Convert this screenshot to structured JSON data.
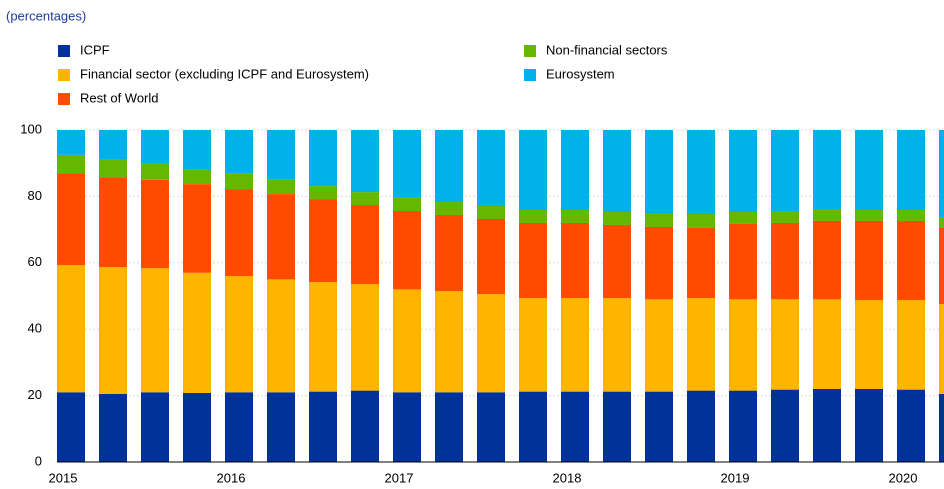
{
  "chart_data": {
    "type": "stacked-bar",
    "subtitle": "(percentages)",
    "categories": [
      "2015",
      null,
      null,
      null,
      "2016",
      null,
      null,
      null,
      "2017",
      null,
      null,
      null,
      "2018",
      null,
      null,
      null,
      "2019",
      null,
      null,
      null,
      "2020",
      null
    ],
    "series": [
      {
        "name": "ICPF",
        "color": "#003299",
        "values": [
          21,
          20.5,
          21,
          20.8,
          21,
          21,
          21.2,
          21.5,
          21,
          21,
          21,
          21.2,
          21.2,
          21.2,
          21.2,
          21.5,
          21.5,
          21.8,
          22,
          22,
          21.8,
          20.5
        ]
      },
      {
        "name": "Financial sector (excluding ICPF and Eurosystem)",
        "color": "#ffb400",
        "values": [
          38.3,
          38.2,
          37.4,
          36.2,
          35,
          34,
          33,
          32.1,
          31,
          30.5,
          29.6,
          28.2,
          28.2,
          28.2,
          27.8,
          27.9,
          27.5,
          27.2,
          27,
          26.8,
          27,
          27.1
        ]
      },
      {
        "name": "Rest of World",
        "color": "#ff4b00",
        "values": [
          27.7,
          27.1,
          26.6,
          26.7,
          26.2,
          25.7,
          25,
          23.8,
          23.6,
          22.9,
          22.6,
          22.6,
          22.6,
          22,
          21.8,
          21.1,
          22.7,
          23,
          23.6,
          23.8,
          23.8,
          22.9
        ]
      },
      {
        "name": "Non-financial sectors",
        "color": "#65b800",
        "values": [
          5.5,
          5.2,
          4.8,
          4.3,
          4.8,
          4.3,
          3.9,
          3.9,
          4.2,
          3.9,
          3.9,
          3.9,
          3.9,
          3.9,
          4.2,
          4.2,
          3.6,
          3.6,
          3.6,
          3.3,
          3.3,
          3.3
        ]
      },
      {
        "name": "Eurosystem",
        "color": "#00b1ea",
        "values": [
          7.5,
          9,
          10.2,
          12,
          13,
          15,
          16.9,
          18.7,
          20.2,
          21.7,
          22.9,
          24.1,
          24.1,
          24.7,
          25,
          25.3,
          24.7,
          24.4,
          23.8,
          24.1,
          24.1,
          26.2
        ]
      }
    ],
    "ylim": [
      0,
      100
    ],
    "yticks": [
      0,
      20,
      40,
      60,
      80,
      100
    ],
    "grid": true
  }
}
